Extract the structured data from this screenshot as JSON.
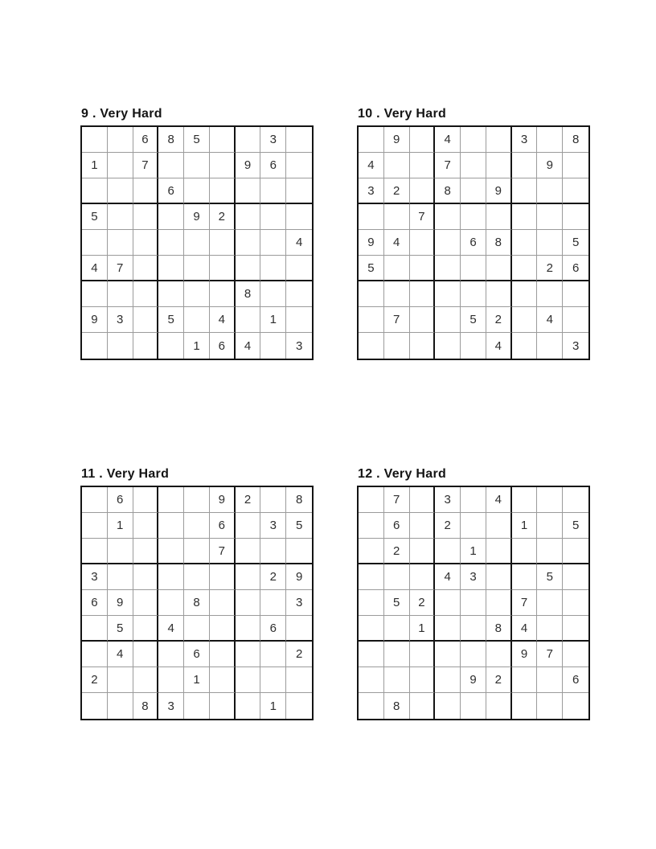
{
  "page": {
    "background": "#ffffff",
    "grid_line_color": "#9b9b9b",
    "grid_box_line_color": "#141414",
    "digit_color": "#2e2e2e",
    "title_color": "#141414"
  },
  "puzzles": [
    {
      "number": "9",
      "difficulty": "Very Hard",
      "title": "9 . Very Hard",
      "grid": [
        [
          "",
          "",
          "6",
          "8",
          "5",
          "",
          "",
          "3",
          ""
        ],
        [
          "1",
          "",
          "7",
          "",
          "",
          "",
          "9",
          "6",
          ""
        ],
        [
          "",
          "",
          "",
          "6",
          "",
          "",
          "",
          "",
          ""
        ],
        [
          "5",
          "",
          "",
          "",
          "9",
          "2",
          "",
          "",
          ""
        ],
        [
          "",
          "",
          "",
          "",
          "",
          "",
          "",
          "",
          "4"
        ],
        [
          "4",
          "7",
          "",
          "",
          "",
          "",
          "",
          "",
          ""
        ],
        [
          "",
          "",
          "",
          "",
          "",
          "",
          "8",
          "",
          ""
        ],
        [
          "9",
          "3",
          "",
          "5",
          "",
          "4",
          "",
          "1",
          ""
        ],
        [
          "",
          "",
          "",
          "",
          "1",
          "6",
          "4",
          "",
          "3"
        ]
      ]
    },
    {
      "number": "10",
      "difficulty": "Very Hard",
      "title": "10 . Very Hard",
      "grid": [
        [
          "",
          "9",
          "",
          "4",
          "",
          "",
          "3",
          "",
          "8"
        ],
        [
          "4",
          "",
          "",
          "7",
          "",
          "",
          "",
          "9",
          ""
        ],
        [
          "3",
          "2",
          "",
          "8",
          "",
          "9",
          "",
          "",
          ""
        ],
        [
          "",
          "",
          "7",
          "",
          "",
          "",
          "",
          "",
          ""
        ],
        [
          "9",
          "4",
          "",
          "",
          "6",
          "8",
          "",
          "",
          "5"
        ],
        [
          "5",
          "",
          "",
          "",
          "",
          "",
          "",
          "2",
          "6"
        ],
        [
          "",
          "",
          "",
          "",
          "",
          "",
          "",
          "",
          ""
        ],
        [
          "",
          "7",
          "",
          "",
          "5",
          "2",
          "",
          "4",
          ""
        ],
        [
          "",
          "",
          "",
          "",
          "",
          "4",
          "",
          "",
          "3"
        ]
      ]
    },
    {
      "number": "11",
      "difficulty": "Very Hard",
      "title": "11 . Very Hard",
      "grid": [
        [
          "",
          "6",
          "",
          "",
          "",
          "9",
          "2",
          "",
          "8"
        ],
        [
          "",
          "1",
          "",
          "",
          "",
          "6",
          "",
          "3",
          "5"
        ],
        [
          "",
          "",
          "",
          "",
          "",
          "7",
          "",
          "",
          ""
        ],
        [
          "3",
          "",
          "",
          "",
          "",
          "",
          "",
          "2",
          "9"
        ],
        [
          "6",
          "9",
          "",
          "",
          "8",
          "",
          "",
          "",
          "3"
        ],
        [
          "",
          "5",
          "",
          "4",
          "",
          "",
          "",
          "6",
          ""
        ],
        [
          "",
          "4",
          "",
          "",
          "6",
          "",
          "",
          "",
          "2"
        ],
        [
          "2",
          "",
          "",
          "",
          "1",
          "",
          "",
          "",
          ""
        ],
        [
          "",
          "",
          "8",
          "3",
          "",
          "",
          "",
          "1",
          ""
        ]
      ]
    },
    {
      "number": "12",
      "difficulty": "Very Hard",
      "title": "12 . Very Hard",
      "grid": [
        [
          "",
          "7",
          "",
          "3",
          "",
          "4",
          "",
          "",
          ""
        ],
        [
          "",
          "6",
          "",
          "2",
          "",
          "",
          "1",
          "",
          "5"
        ],
        [
          "",
          "2",
          "",
          "",
          "1",
          "",
          "",
          "",
          ""
        ],
        [
          "",
          "",
          "",
          "4",
          "3",
          "",
          "",
          "5",
          ""
        ],
        [
          "",
          "5",
          "2",
          "",
          "",
          "",
          "7",
          "",
          ""
        ],
        [
          "",
          "",
          "1",
          "",
          "",
          "8",
          "4",
          "",
          ""
        ],
        [
          "",
          "",
          "",
          "",
          "",
          "",
          "9",
          "7",
          ""
        ],
        [
          "",
          "",
          "",
          "",
          "9",
          "2",
          "",
          "",
          "6"
        ],
        [
          "",
          "8",
          "",
          "",
          "",
          "",
          "",
          "",
          ""
        ]
      ]
    }
  ]
}
